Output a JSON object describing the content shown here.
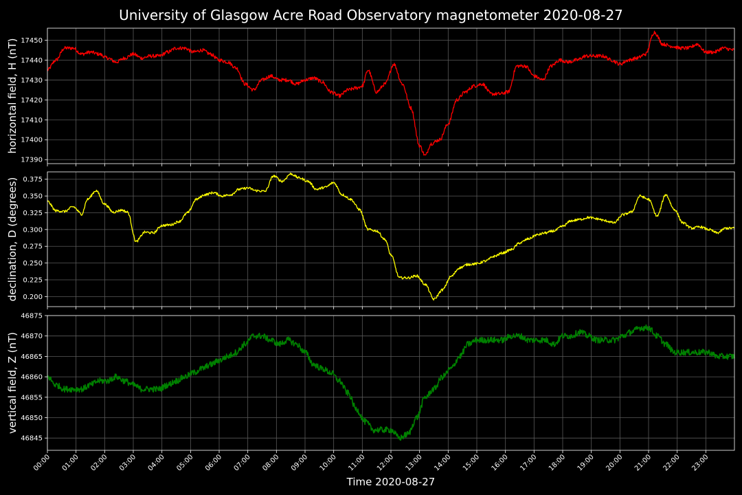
{
  "chart_data": {
    "type": "line",
    "title": "University of Glasgow Acre Road Observatory magnetometer 2020-08-27",
    "xlabel": "Time 2020-08-27",
    "x_ticks": [
      "00:00",
      "01:00",
      "02:00",
      "03:00",
      "04:00",
      "05:00",
      "06:00",
      "07:00",
      "08:00",
      "09:00",
      "10:00",
      "11:00",
      "12:00",
      "13:00",
      "14:00",
      "15:00",
      "16:00",
      "17:00",
      "18:00",
      "19:00",
      "20:00",
      "21:00",
      "22:00",
      "23:00"
    ],
    "xlim": [
      0,
      24
    ],
    "grid": true,
    "background": "#000000",
    "panels": [
      {
        "ylabel": "horizontal field, H (nT)",
        "color": "#ff0000",
        "ylim": [
          17388,
          17456
        ],
        "yticks": [
          17390,
          17400,
          17410,
          17420,
          17430,
          17440,
          17450
        ],
        "ytick_labels": [
          "17390",
          "17400",
          "17410",
          "17420",
          "17430",
          "17440",
          "17450"
        ],
        "noise": 0.9,
        "x": [
          0,
          0.3,
          0.6,
          0.9,
          1.2,
          1.5,
          1.8,
          2.1,
          2.4,
          2.7,
          3.0,
          3.3,
          3.6,
          3.9,
          4.2,
          4.5,
          4.8,
          5.1,
          5.4,
          5.7,
          6.0,
          6.3,
          6.6,
          6.9,
          7.2,
          7.5,
          7.8,
          8.1,
          8.4,
          8.7,
          9.0,
          9.3,
          9.6,
          9.9,
          10.2,
          10.5,
          10.8,
          11.0,
          11.2,
          11.5,
          11.8,
          12.1,
          12.4,
          12.7,
          13.0,
          13.2,
          13.4,
          13.7,
          14.0,
          14.3,
          14.6,
          14.9,
          15.2,
          15.5,
          15.8,
          16.1,
          16.4,
          16.7,
          17.0,
          17.3,
          17.6,
          17.9,
          18.2,
          18.5,
          18.8,
          19.1,
          19.4,
          19.7,
          20.0,
          20.3,
          20.6,
          20.9,
          21.2,
          21.5,
          21.8,
          22.1,
          22.4,
          22.7,
          23.0,
          23.3,
          23.6,
          24.0
        ],
        "values": [
          17435,
          17440,
          17446,
          17446,
          17443,
          17444,
          17443,
          17441,
          17439,
          17441,
          17443,
          17441,
          17442,
          17442,
          17444,
          17446,
          17446,
          17444,
          17445,
          17443,
          17440,
          17439,
          17436,
          17428,
          17425,
          17430,
          17432,
          17430,
          17430,
          17428,
          17430,
          17431,
          17429,
          17424,
          17422,
          17425,
          17426,
          17427,
          17435,
          17424,
          17428,
          17438,
          17428,
          17416,
          17397,
          17392,
          17398,
          17400,
          17408,
          17420,
          17424,
          17427,
          17428,
          17423,
          17423,
          17424,
          17437,
          17437,
          17432,
          17430,
          17437,
          17440,
          17439,
          17440,
          17442,
          17442,
          17442,
          17440,
          17438,
          17440,
          17441,
          17443,
          17454,
          17448,
          17447,
          17446,
          17446,
          17448,
          17444,
          17444,
          17446,
          17445
        ]
      },
      {
        "ylabel": "declination, D (degrees)",
        "color": "#ffff00",
        "ylim": [
          0.185,
          0.386
        ],
        "yticks": [
          0.2,
          0.225,
          0.25,
          0.275,
          0.3,
          0.325,
          0.35,
          0.375
        ],
        "ytick_labels": [
          "0.200",
          "0.225",
          "0.250",
          "0.275",
          "0.300",
          "0.325",
          "0.350",
          "0.375"
        ],
        "noise": 0.0018,
        "x": [
          0,
          0.3,
          0.6,
          0.9,
          1.2,
          1.4,
          1.7,
          2.0,
          2.3,
          2.6,
          2.8,
          3.1,
          3.4,
          3.7,
          4.0,
          4.3,
          4.6,
          4.9,
          5.2,
          5.5,
          5.8,
          6.1,
          6.4,
          6.7,
          7.0,
          7.3,
          7.6,
          7.9,
          8.2,
          8.5,
          8.8,
          9.1,
          9.4,
          9.7,
          10.0,
          10.3,
          10.6,
          10.9,
          11.2,
          11.5,
          11.8,
          12.0,
          12.3,
          12.6,
          12.9,
          13.2,
          13.5,
          13.8,
          14.1,
          14.4,
          14.7,
          15.0,
          15.3,
          15.6,
          15.9,
          16.2,
          16.5,
          16.8,
          17.1,
          17.4,
          17.7,
          18.0,
          18.3,
          18.6,
          18.9,
          19.2,
          19.5,
          19.8,
          20.1,
          20.4,
          20.7,
          21.0,
          21.3,
          21.6,
          21.9,
          22.2,
          22.5,
          22.8,
          23.1,
          23.4,
          23.7,
          24.0
        ],
        "values": [
          0.342,
          0.328,
          0.327,
          0.334,
          0.323,
          0.345,
          0.358,
          0.338,
          0.326,
          0.329,
          0.326,
          0.282,
          0.296,
          0.295,
          0.306,
          0.307,
          0.312,
          0.325,
          0.345,
          0.352,
          0.355,
          0.35,
          0.352,
          0.36,
          0.362,
          0.358,
          0.357,
          0.38,
          0.372,
          0.383,
          0.377,
          0.372,
          0.36,
          0.363,
          0.37,
          0.352,
          0.345,
          0.33,
          0.3,
          0.298,
          0.285,
          0.262,
          0.228,
          0.228,
          0.231,
          0.218,
          0.196,
          0.21,
          0.23,
          0.243,
          0.248,
          0.249,
          0.253,
          0.26,
          0.265,
          0.27,
          0.28,
          0.286,
          0.292,
          0.295,
          0.298,
          0.305,
          0.313,
          0.315,
          0.318,
          0.316,
          0.313,
          0.31,
          0.322,
          0.326,
          0.35,
          0.345,
          0.32,
          0.352,
          0.33,
          0.31,
          0.302,
          0.304,
          0.3,
          0.295,
          0.302,
          0.302
        ]
      },
      {
        "ylabel": "vertical field, Z (nT)",
        "color": "#008000",
        "ylim": [
          46842,
          46875
        ],
        "yticks": [
          46845,
          46850,
          46855,
          46860,
          46865,
          46870,
          46875
        ],
        "ytick_labels": [
          "46845",
          "46850",
          "46855",
          "46860",
          "46865",
          "46870",
          "46875"
        ],
        "noise": 0.75,
        "x": [
          0,
          0.3,
          0.6,
          0.9,
          1.2,
          1.5,
          1.8,
          2.1,
          2.4,
          2.7,
          3.0,
          3.3,
          3.6,
          3.9,
          4.2,
          4.5,
          4.8,
          5.1,
          5.4,
          5.7,
          6.0,
          6.3,
          6.6,
          6.9,
          7.2,
          7.5,
          7.8,
          8.1,
          8.4,
          8.7,
          9.0,
          9.3,
          9.6,
          9.9,
          10.2,
          10.5,
          10.8,
          11.1,
          11.4,
          11.7,
          12.0,
          12.3,
          12.6,
          12.9,
          13.2,
          13.5,
          13.8,
          14.1,
          14.4,
          14.7,
          15.0,
          15.3,
          15.6,
          15.9,
          16.2,
          16.5,
          16.8,
          17.1,
          17.4,
          17.7,
          18.0,
          18.3,
          18.6,
          18.9,
          19.2,
          19.5,
          19.8,
          20.1,
          20.4,
          20.7,
          21.0,
          21.3,
          21.6,
          21.9,
          22.2,
          22.5,
          22.8,
          23.1,
          23.4,
          23.7,
          24.0
        ],
        "values": [
          46860,
          46858,
          46857,
          46857,
          46857,
          46858,
          46859,
          46859,
          46860,
          46859,
          46858,
          46857,
          46857,
          46857,
          46858,
          46859,
          46860,
          46861,
          46862,
          46863,
          46864,
          46865,
          46866,
          46868,
          46870,
          46870,
          46869,
          46868,
          46869,
          46868,
          46866,
          46863,
          46862,
          46861,
          46859,
          46856,
          46852,
          46849,
          46847,
          46847,
          46847,
          46845,
          46846,
          46850,
          46855,
          46857,
          46860,
          46862,
          46865,
          46868,
          46869,
          46869,
          46869,
          46869,
          46870,
          46870,
          46869,
          46869,
          46869,
          46868,
          46870,
          46870,
          46871,
          46870,
          46869,
          46869,
          46869,
          46870,
          46871,
          46872,
          46872,
          46870,
          46868,
          46866,
          46866,
          46866,
          46866,
          46866,
          46865,
          46865,
          46865
        ]
      }
    ]
  }
}
